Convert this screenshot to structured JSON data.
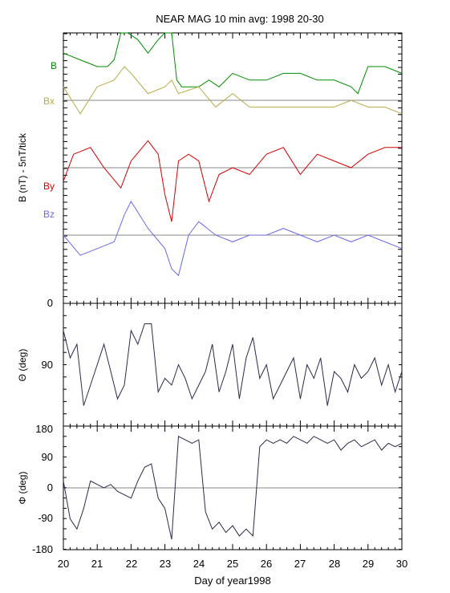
{
  "title": "NEAR MAG 10 min avg: 1998 20-30",
  "x_axis": {
    "label": "Day of year1998",
    "tick_labels": [
      "20",
      "21",
      "22",
      "23",
      "24",
      "25",
      "26",
      "27",
      "28",
      "29",
      "30"
    ]
  },
  "panels": {
    "b": {
      "ylabel": "B  (nT) - 5nT/tick",
      "zero_tick": "0",
      "series_labels": [
        {
          "key": "b",
          "text": "B",
          "color": "#008c00"
        },
        {
          "key": "bx",
          "text": "Bx",
          "color": "#b9ab47"
        },
        {
          "key": "by",
          "text": "By",
          "color": "#d40000"
        },
        {
          "key": "bz",
          "text": "Bz",
          "color": "#6a6ae8"
        }
      ]
    },
    "theta": {
      "ylabel": "Θ (deg)",
      "tick_labels": [
        "90"
      ]
    },
    "phi": {
      "ylabel": "Φ (deg)",
      "tick_labels": [
        "180",
        "90",
        "0",
        "-90",
        "-180"
      ]
    }
  },
  "chart_data": {
    "type": "line",
    "x_range": [
      20,
      30
    ],
    "panels": [
      {
        "name": "B",
        "series": [
          {
            "name": "B",
            "color": "#008c00",
            "x": [
              20,
              20.5,
              21,
              21.3,
              21.5,
              21.7,
              21.9,
              22.2,
              22.5,
              22.8,
              23,
              23.2,
              23.35,
              23.5,
              23.8,
              24,
              24.3,
              24.6,
              25,
              25.5,
              26,
              26.5,
              27,
              27.5,
              28,
              28.5,
              28.7,
              29,
              29.5,
              30
            ],
            "y": [
              7,
              6,
              5,
              5,
              6,
              11,
              10,
              9,
              7,
              9,
              12,
              12,
              3,
              2,
              2,
              2,
              3,
              2,
              4,
              3,
              3,
              4,
              4,
              3,
              3,
              2,
              1,
              5,
              5,
              4
            ]
          },
          {
            "name": "Bx",
            "color": "#b9ab47",
            "x": [
              20,
              20.5,
              21,
              21.5,
              21.8,
              22,
              22.5,
              23,
              23.2,
              23.4,
              24,
              24.5,
              25,
              25.5,
              26,
              26.5,
              27,
              27.5,
              28,
              28.5,
              29,
              29.5,
              30
            ],
            "y": [
              2,
              -2,
              2,
              3,
              5,
              4,
              1,
              2,
              3,
              1,
              2,
              -1,
              1,
              -1,
              -1,
              -1,
              -1,
              -1,
              -1,
              0,
              -1,
              -1,
              -2
            ]
          },
          {
            "name": "By",
            "color": "#d40000",
            "x": [
              20,
              20.3,
              20.8,
              21.2,
              21.7,
              22,
              22.5,
              22.8,
              23,
              23.2,
              23.4,
              23.7,
              24,
              24.3,
              24.6,
              25,
              25.5,
              26,
              26.5,
              27,
              27.5,
              28,
              28.5,
              29,
              29.5,
              30
            ],
            "y": [
              -2,
              2,
              3,
              0,
              -3,
              1,
              4,
              2,
              -4,
              -8,
              1,
              2,
              1,
              -5,
              -1,
              0,
              -1,
              2,
              3,
              -1,
              2,
              1,
              0,
              2,
              3,
              3
            ]
          },
          {
            "name": "Bz",
            "color": "#6a6ae8",
            "x": [
              20,
              20.5,
              21,
              21.5,
              21.8,
              22,
              22.5,
              23,
              23.2,
              23.4,
              23.7,
              24,
              24.5,
              25,
              25.5,
              26,
              26.5,
              27,
              27.5,
              28,
              28.5,
              29,
              29.5,
              30
            ],
            "y": [
              0,
              -3,
              -2,
              -1,
              3,
              5,
              1,
              -2,
              -5,
              -6,
              0,
              2,
              0,
              -1,
              0,
              0,
              1,
              0,
              -1,
              0,
              -1,
              0,
              -1,
              -2
            ]
          }
        ]
      },
      {
        "name": "Theta",
        "y_range": [
          0,
          180
        ],
        "series": [
          {
            "name": "Theta",
            "color": "#2a2a4a",
            "x": [
              20,
              20.2,
              20.4,
              20.6,
              20.8,
              21,
              21.2,
              21.4,
              21.6,
              21.8,
              22,
              22.2,
              22.4,
              22.6,
              22.8,
              23,
              23.2,
              23.4,
              23.6,
              23.8,
              24,
              24.2,
              24.4,
              24.6,
              24.8,
              25,
              25.2,
              25.4,
              25.6,
              25.8,
              26,
              26.2,
              26.4,
              26.6,
              26.8,
              27,
              27.2,
              27.4,
              27.6,
              27.8,
              28,
              28.2,
              28.4,
              28.6,
              28.8,
              29,
              29.2,
              29.4,
              29.6,
              29.8,
              30
            ],
            "y": [
              40,
              80,
              60,
              150,
              120,
              90,
              60,
              100,
              140,
              120,
              40,
              60,
              30,
              30,
              130,
              110,
              120,
              90,
              110,
              140,
              120,
              100,
              60,
              130,
              100,
              60,
              140,
              80,
              50,
              110,
              90,
              140,
              120,
              100,
              80,
              140,
              90,
              110,
              80,
              150,
              100,
              110,
              130,
              90,
              110,
              100,
              80,
              120,
              90,
              130,
              100
            ]
          }
        ]
      },
      {
        "name": "Phi",
        "y_range": [
          -180,
          180
        ],
        "series": [
          {
            "name": "Phi",
            "color": "#2a2a4a",
            "x": [
              20,
              20.2,
              20.4,
              20.6,
              20.8,
              21,
              21.2,
              21.4,
              21.6,
              21.8,
              22,
              22.2,
              22.4,
              22.6,
              22.8,
              23,
              23.2,
              23.4,
              23.6,
              23.8,
              24,
              24.2,
              24.4,
              24.6,
              24.8,
              25,
              25.2,
              25.4,
              25.6,
              25.8,
              26,
              26.2,
              26.4,
              26.6,
              26.8,
              27,
              27.2,
              27.4,
              27.6,
              27.8,
              28,
              28.2,
              28.4,
              28.6,
              28.8,
              29,
              29.2,
              29.4,
              29.6,
              29.8,
              30
            ],
            "y": [
              20,
              -90,
              -120,
              -60,
              20,
              10,
              0,
              10,
              -10,
              -20,
              -30,
              20,
              60,
              70,
              -30,
              -60,
              -150,
              150,
              140,
              130,
              140,
              -70,
              -120,
              -100,
              -130,
              -110,
              -140,
              -120,
              -140,
              120,
              140,
              130,
              140,
              130,
              150,
              140,
              130,
              150,
              140,
              130,
              140,
              110,
              130,
              140,
              120,
              130,
              140,
              110,
              130,
              120,
              130
            ]
          }
        ]
      }
    ]
  }
}
